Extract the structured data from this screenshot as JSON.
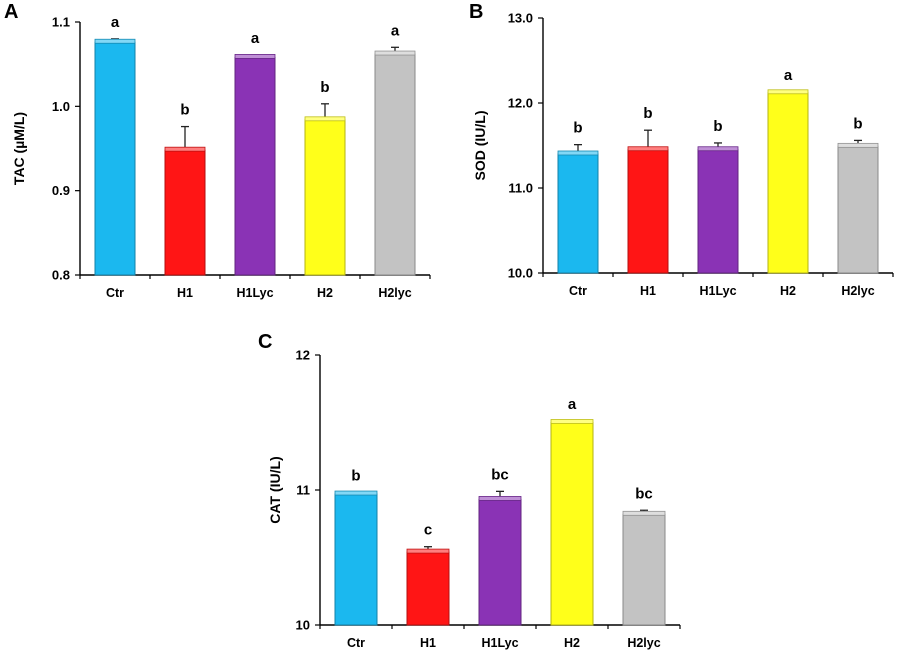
{
  "colors": {
    "Ctr": "#1bb8ef",
    "H1": "#ff1515",
    "H1Lyc": "#8a33b5",
    "H2": "#ffff1a",
    "H2lyc": "#c3c3c3"
  },
  "chart_data": [
    {
      "panel": "A",
      "type": "bar",
      "ylabel": "TAC (µM/L)",
      "ylim": [
        0.8,
        1.1
      ],
      "yticks": [
        "0.8",
        "0.9",
        "1.0",
        "1.1"
      ],
      "categories": [
        "Ctr",
        "H1",
        "H1Lyc",
        "H2",
        "H2lyc"
      ],
      "values": [
        1.076,
        0.948,
        1.058,
        0.984,
        1.062
      ],
      "errors": [
        0.004,
        0.028,
        0.003,
        0.019,
        0.008
      ],
      "significance": [
        "a",
        "b",
        "a",
        "b",
        "a"
      ]
    },
    {
      "panel": "B",
      "type": "bar",
      "ylabel": "SOD (IU/L)",
      "ylim": [
        10.0,
        13.0
      ],
      "yticks": [
        "10.0",
        "11.0",
        "12.0",
        "13.0"
      ],
      "categories": [
        "Ctr",
        "H1",
        "H1Lyc",
        "H2",
        "H2lyc"
      ],
      "values": [
        11.4,
        11.45,
        11.45,
        12.12,
        11.49
      ],
      "errors": [
        0.11,
        0.23,
        0.08,
        0.01,
        0.07
      ],
      "significance": [
        "b",
        "b",
        "b",
        "a",
        "b"
      ]
    },
    {
      "panel": "C",
      "type": "bar",
      "ylabel": "CAT (IU/L)",
      "ylim": [
        10,
        12
      ],
      "yticks": [
        "10",
        "11",
        "12"
      ],
      "categories": [
        "Ctr",
        "H1",
        "H1Lyc",
        "H2",
        "H2lyc"
      ],
      "values": [
        10.97,
        10.54,
        10.93,
        11.5,
        10.82
      ],
      "errors": [
        0.01,
        0.04,
        0.06,
        0.01,
        0.03
      ],
      "significance": [
        "b",
        "c",
        "bc",
        "a",
        "bc"
      ]
    }
  ]
}
